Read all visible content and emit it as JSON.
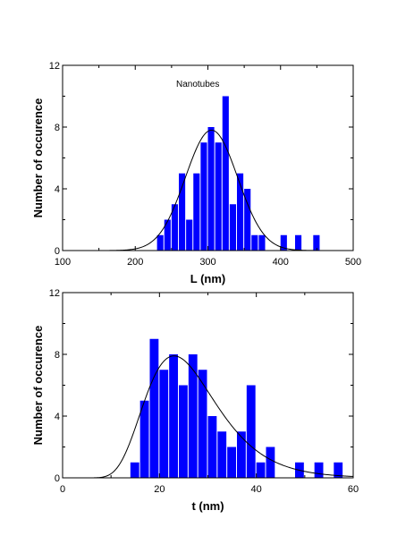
{
  "chart_data": [
    {
      "type": "bar",
      "bar_color": "#0000FF",
      "curve_color": "#000000",
      "annotation": "Nanotubes",
      "xlabel": "L (nm)",
      "ylabel": "Number of occurence",
      "xlim": [
        100,
        500
      ],
      "ylim": [
        0,
        12
      ],
      "xticks": [
        "100",
        "200",
        "300",
        "400",
        "500"
      ],
      "yticks": [
        "0",
        "4",
        "8",
        "12"
      ],
      "bin_width": 10,
      "bins": [
        {
          "x": 235,
          "count": 1
        },
        {
          "x": 245,
          "count": 2
        },
        {
          "x": 255,
          "count": 3
        },
        {
          "x": 265,
          "count": 5
        },
        {
          "x": 275,
          "count": 2
        },
        {
          "x": 285,
          "count": 5
        },
        {
          "x": 295,
          "count": 7
        },
        {
          "x": 305,
          "count": 8
        },
        {
          "x": 315,
          "count": 7
        },
        {
          "x": 325,
          "count": 10
        },
        {
          "x": 335,
          "count": 3
        },
        {
          "x": 345,
          "count": 5
        },
        {
          "x": 355,
          "count": 4
        },
        {
          "x": 365,
          "count": 1
        },
        {
          "x": 375,
          "count": 1
        },
        {
          "x": 405,
          "count": 1
        },
        {
          "x": 425,
          "count": 1
        },
        {
          "x": 450,
          "count": 1
        }
      ],
      "fit": {
        "type": "gaussian",
        "mean": 305,
        "sd": 36,
        "peak": 7.8
      }
    },
    {
      "type": "bar",
      "bar_color": "#0000FF",
      "curve_color": "#000000",
      "xlabel": "t (nm)",
      "ylabel": "Number of occurence",
      "xlim": [
        0,
        60
      ],
      "ylim": [
        0,
        12
      ],
      "xticks": [
        "0",
        "20",
        "40",
        "60"
      ],
      "yticks": [
        "0",
        "4",
        "8",
        "12"
      ],
      "bin_width": 2,
      "bins": [
        {
          "x": 15,
          "count": 1
        },
        {
          "x": 17,
          "count": 5
        },
        {
          "x": 19,
          "count": 9
        },
        {
          "x": 21,
          "count": 7
        },
        {
          "x": 23,
          "count": 8
        },
        {
          "x": 25,
          "count": 6
        },
        {
          "x": 27,
          "count": 8
        },
        {
          "x": 29,
          "count": 7
        },
        {
          "x": 31,
          "count": 4
        },
        {
          "x": 33,
          "count": 3
        },
        {
          "x": 35,
          "count": 2
        },
        {
          "x": 37,
          "count": 3
        },
        {
          "x": 39,
          "count": 6
        },
        {
          "x": 41,
          "count": 1
        },
        {
          "x": 43,
          "count": 2
        },
        {
          "x": 49,
          "count": 1
        },
        {
          "x": 53,
          "count": 1
        },
        {
          "x": 57,
          "count": 1
        }
      ],
      "fit": {
        "type": "lognormal",
        "mode": 23,
        "sigma": 0.32,
        "peak": 7.9
      }
    }
  ]
}
